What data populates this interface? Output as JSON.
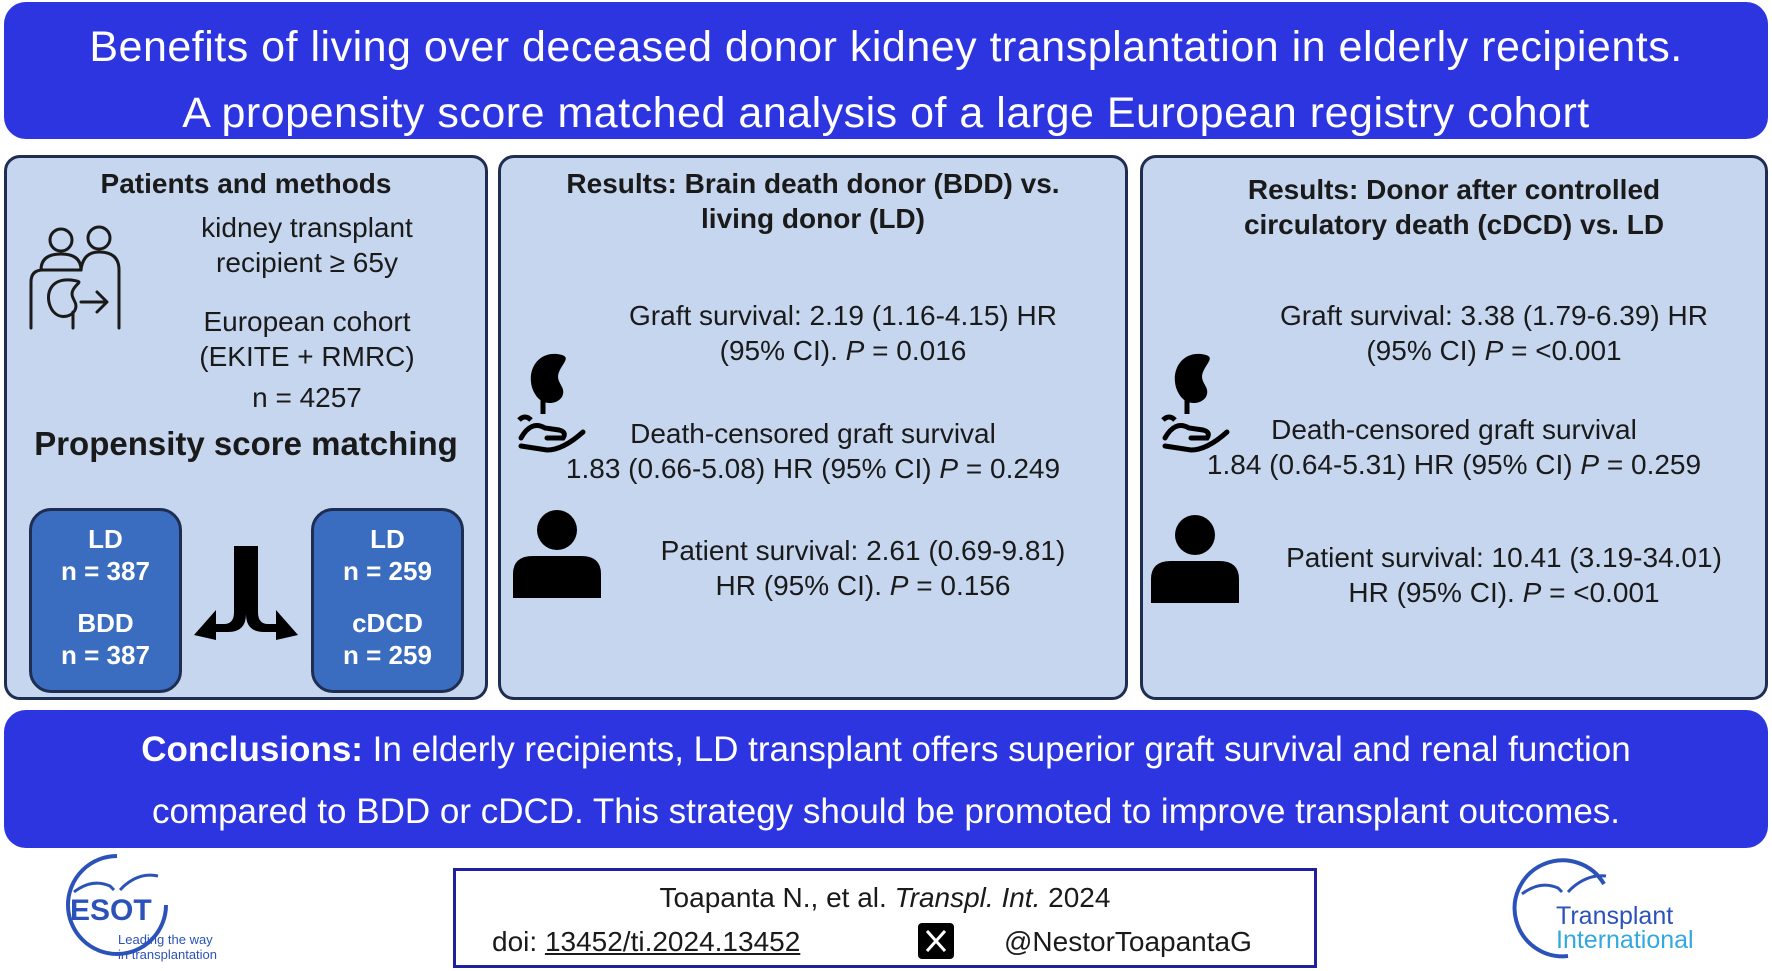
{
  "title": {
    "line1": "Benefits of living over deceased donor kidney transplantation in elderly recipients.",
    "line2": "A propensity score matched analysis of a large European registry cohort"
  },
  "methods": {
    "heading": "Patients and methods",
    "recipient_line1": "kidney transplant",
    "recipient_line2": "recipient ≥ 65y",
    "cohort_line1": "European cohort",
    "cohort_line2": "(EKITE + RMRC)",
    "n_total": "n = 4257",
    "psm_heading": "Propensity score matching",
    "left_box": {
      "g1": "LD",
      "n1": "n = 387",
      "g2": "BDD",
      "n2": "n = 387"
    },
    "right_box": {
      "g1": "LD",
      "n1": "n = 259",
      "g2": "cDCD",
      "n2": "n = 259"
    }
  },
  "bdd": {
    "heading_line1": "Results: Brain death donor (BDD) vs.",
    "heading_line2": "living donor (LD)",
    "graft_line1": "Graft survival: 2.19 (1.16-4.15) HR",
    "graft_line2_pre": "(95% CI). ",
    "graft_p_label": "P",
    "graft_p_value": " = 0.016",
    "dc_line1": "Death-censored graft survival",
    "dc_line2_pre": "1.83 (0.66-5.08) HR (95% CI) ",
    "dc_p_label": "P",
    "dc_p_value": " = 0.249",
    "patient_line1": "Patient survival: 2.61 (0.69-9.81)",
    "patient_line2_pre": "HR (95% CI). ",
    "patient_p_label": "P",
    "patient_p_value": " = 0.156"
  },
  "cdcd": {
    "heading_line1": "Results: Donor after controlled",
    "heading_line2": "circulatory death (cDCD) vs. LD",
    "graft_line1": "Graft survival: 3.38 (1.79-6.39) HR",
    "graft_line2_pre": "(95% CI) ",
    "graft_p_label": "P",
    "graft_p_value": " = <0.001",
    "dc_line1": "Death-censored graft survival",
    "dc_line2_pre": "1.84 (0.64-5.31) HR (95% CI) ",
    "dc_p_label": "P",
    "dc_p_value": " = 0.259",
    "patient_line1": "Patient survival: 10.41 (3.19-34.01)",
    "patient_line2_pre": "HR (95% CI). ",
    "patient_p_label": "P",
    "patient_p_value": " = <0.001"
  },
  "conclusions": {
    "label": "Conclusions:",
    "line1_rest": " In elderly recipients, LD transplant offers superior graft survival and renal function",
    "line2": "compared to BDD or cDCD. This strategy should be promoted to improve transplant outcomes."
  },
  "citation": {
    "authors": "Toapanta N., et al. ",
    "journal": "Transpl. Int.",
    "year": " 2024",
    "doi_label": "doi: ",
    "doi": "13452/ti.2024.13452",
    "handle": "@NestorToapantaG"
  },
  "logos": {
    "esot_name": "ESOT",
    "esot_tag1": "Leading the way",
    "esot_tag2": "in transplantation",
    "ti_line1": "Transplant",
    "ti_line2": "International"
  },
  "colors": {
    "banner": "#2d35e0",
    "panel": "#c5d6ee",
    "box": "#3a6cbf",
    "border": "#1f2d52",
    "logo_blue": "#2a52b8",
    "logo_cyan": "#33a8e0"
  },
  "icons": [
    "people-kidney-icon",
    "kidney-hand-icon",
    "person-icon",
    "x-logo-icon",
    "split-arrow-icon"
  ]
}
